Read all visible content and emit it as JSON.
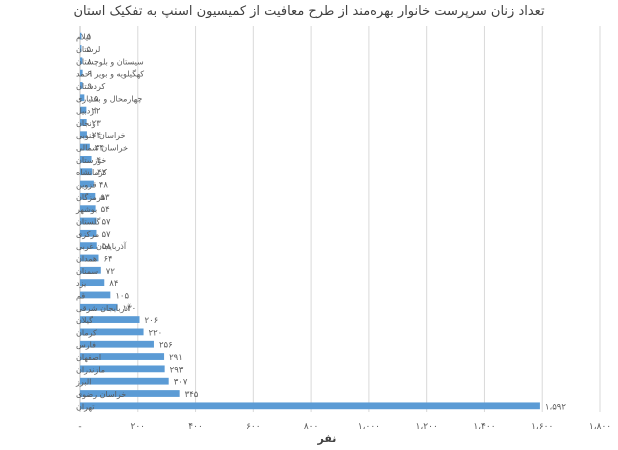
{
  "chart_data": {
    "type": "bar",
    "orientation": "horizontal",
    "title": "تعداد زنان سرپرست خانوار بهره‌مند از طرح معافیت از کمیسیون اسنپ به تفکیک استان",
    "xlabel": "نفر",
    "ylabel": "",
    "categories": [
      "ایلام",
      "لرستان",
      "سیستان و بلوچستان",
      "کهگیلویه و بویر احمد",
      "کردستان",
      "چهارمحال و بختیاری",
      "اردبیل",
      "زنجان",
      "خراسان جنوبی",
      "خراسان شمالی",
      "خوزستان",
      "کرمانشاه",
      "قزوین",
      "هرمزگان",
      "بوشهر",
      "گلستان",
      "مرکزی",
      "آذربایجان غربی",
      "همدان",
      "سمنان",
      "یزد",
      "قم",
      "آذربایجان شرقی",
      "گیلان",
      "کرمان",
      "فارس",
      "اصفهان",
      "مازندران",
      "البرز",
      "خراسان رضوی",
      "تهران"
    ],
    "values": [
      5,
      5,
      8,
      9,
      9,
      15,
      22,
      23,
      24,
      34,
      40,
      42,
      48,
      53,
      54,
      57,
      57,
      58,
      64,
      72,
      84,
      105,
      130,
      206,
      220,
      256,
      291,
      293,
      307,
      345,
      1592
    ],
    "value_labels": [
      "۵",
      "۵",
      "۸",
      "۹",
      "۹",
      "۱۵",
      "۲۲",
      "۲۳",
      "۲۴",
      "۳۴",
      "۴۰",
      "۴۲",
      "۴۸",
      "۵۳",
      "۵۴",
      "۵۷",
      "۵۷",
      "۵۸",
      "۶۴",
      "۷۲",
      "۸۴",
      "۱۰۵",
      "۱۳۰",
      "۲۰۶",
      "۲۲۰",
      "۲۵۶",
      "۲۹۱",
      "۲۹۳",
      "۳۰۷",
      "۳۴۵",
      "۱،۵۹۲"
    ],
    "xlim": [
      0,
      1800
    ],
    "xticks": [
      0,
      200,
      400,
      600,
      800,
      1000,
      1200,
      1400,
      1600,
      1800
    ],
    "xtick_labels": [
      "-",
      "۲۰۰",
      "۴۰۰",
      "۶۰۰",
      "۸۰۰",
      "۱،۰۰۰",
      "۱،۲۰۰",
      "۱،۴۰۰",
      "۱،۶۰۰",
      "۱،۸۰۰"
    ],
    "grid": true,
    "colors": {
      "bar": "#5b9bd5",
      "grid": "#d9d9d9",
      "text": "#595959"
    }
  }
}
